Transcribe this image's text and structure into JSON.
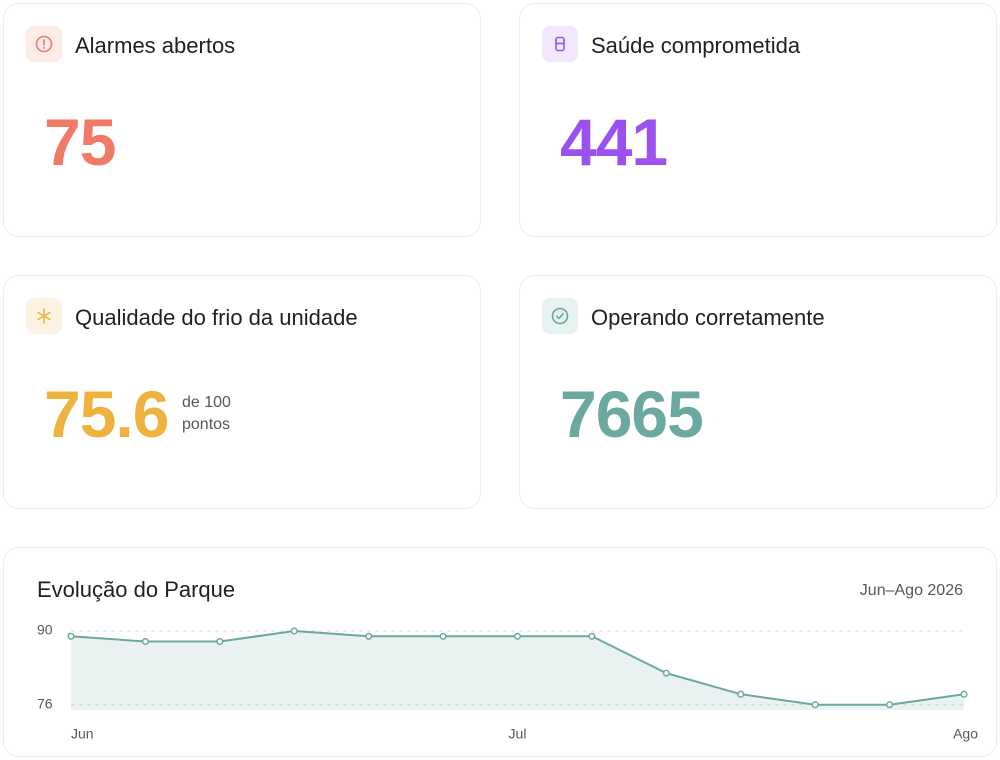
{
  "cards": [
    {
      "title": "Alarmes abertos",
      "value": 75,
      "color": "#f07a66"
    },
    {
      "title": "Saúde comprometida",
      "value": 441,
      "color": "#9b51f0"
    },
    {
      "title": "Qualidade do frio da unidade",
      "value": 75.6,
      "note": "de 100 pontos",
      "color": "#f0b23e"
    },
    {
      "title": "Operando corretamente",
      "value": 7665,
      "color": "#6ba89f"
    }
  ],
  "chart_data": {
    "type": "line",
    "title": "Evolução do Parque",
    "subtitle": "Jun–Ago 2026",
    "categories": [
      "Jun",
      null,
      null,
      null,
      null,
      null,
      "Jul",
      null,
      null,
      null,
      null,
      null,
      "Ago"
    ],
    "values": [
      89,
      88,
      88,
      90,
      89,
      89,
      89,
      89,
      82,
      78,
      76,
      76,
      78
    ],
    "color": "#6ba89f",
    "ylim": [
      75,
      90
    ],
    "yticks": [
      76,
      90
    ],
    "grid": true
  }
}
